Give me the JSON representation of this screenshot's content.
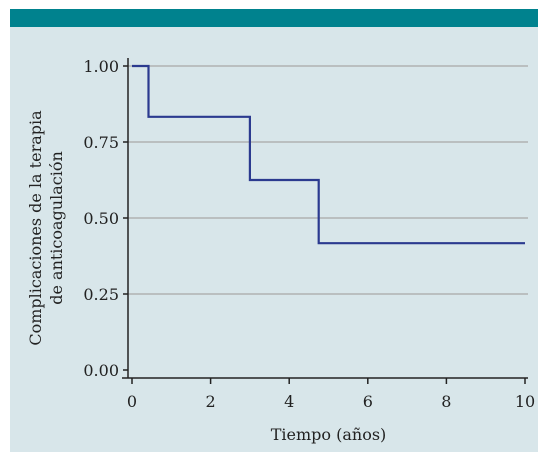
{
  "header": {
    "bar_color": "#00828e"
  },
  "panel": {
    "background": "#d8e6ea"
  },
  "chart_data": {
    "type": "line",
    "step": true,
    "title": "",
    "xlabel": "Tiempo (años)",
    "ylabel_lines": [
      "Complicaciones de la terapia",
      "de anticoagulación"
    ],
    "xlim": [
      0,
      10
    ],
    "ylim": [
      0,
      1
    ],
    "x_ticks": [
      0,
      2,
      4,
      6,
      8,
      10
    ],
    "x_tick_labels": [
      "0",
      "2",
      "4",
      "6",
      "8",
      "10"
    ],
    "y_ticks": [
      0,
      0.25,
      0.5,
      0.75,
      1.0
    ],
    "y_tick_labels": [
      "0.00",
      "0.25",
      "0.50",
      "0.75",
      "1.00"
    ],
    "grid": {
      "horizontal": true,
      "vertical": false,
      "color": "#a8a8a8"
    },
    "series": [
      {
        "color": "#2b3a8f",
        "points": [
          [
            0,
            1.0
          ],
          [
            0.42,
            1.0
          ],
          [
            0.42,
            0.833
          ],
          [
            3.0,
            0.833
          ],
          [
            3.0,
            0.625
          ],
          [
            4.75,
            0.625
          ],
          [
            4.75,
            0.417
          ],
          [
            10,
            0.417
          ]
        ]
      }
    ]
  }
}
